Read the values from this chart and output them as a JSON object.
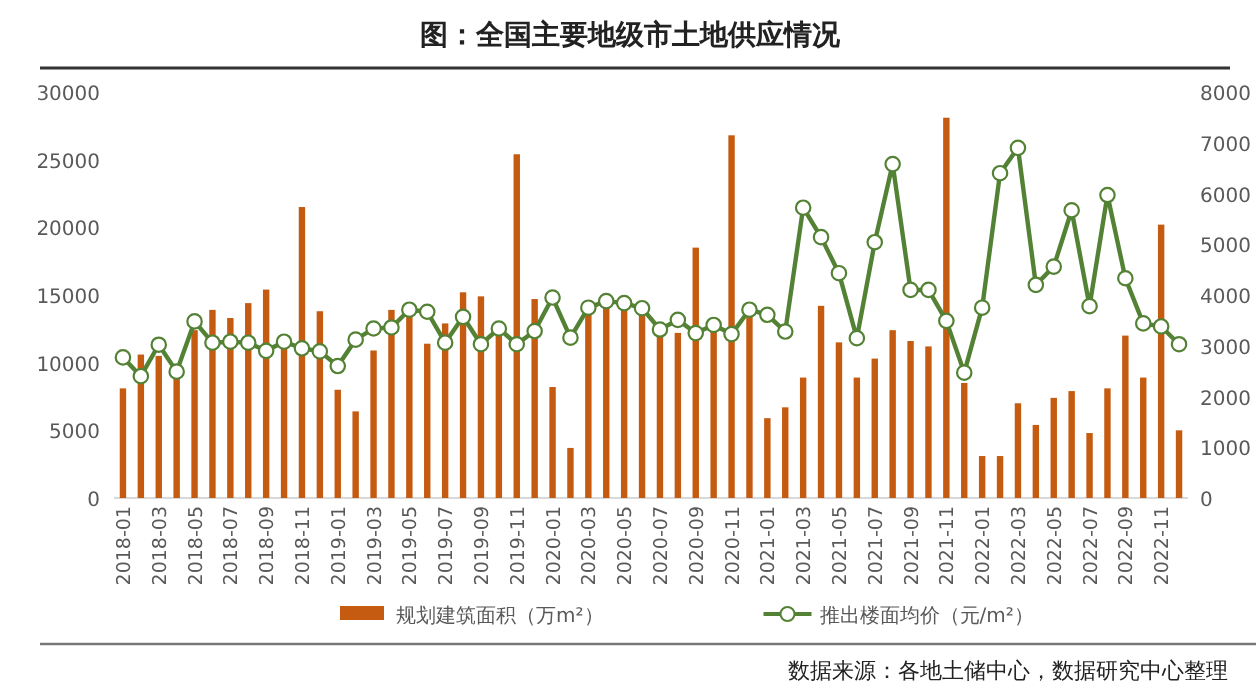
{
  "chart_data": {
    "type": "bar",
    "title": "图：全国主要地级市土地供应情况",
    "categories": [
      "2018-01",
      null,
      "2018-03",
      null,
      "2018-05",
      null,
      "2018-07",
      null,
      "2018-09",
      null,
      "2018-11",
      null,
      "2019-01",
      null,
      "2019-03",
      null,
      "2019-05",
      null,
      "2019-07",
      null,
      "2019-09",
      null,
      "2019-11",
      null,
      "2020-01",
      null,
      "2020-03",
      null,
      "2020-05",
      null,
      "2020-07",
      null,
      "2020-09",
      null,
      "2020-11",
      null,
      "2021-01",
      null,
      "2021-03",
      null,
      "2021-05",
      null,
      "2021-07",
      null,
      "2021-09",
      null,
      "2021-11",
      null,
      "2022-01",
      null,
      "2022-03",
      null,
      "2022-05",
      null,
      "2022-07",
      null,
      "2022-09",
      null,
      "2022-11",
      null
    ],
    "series": [
      {
        "name": "规划建筑面积（万m²）",
        "color": "#c55a11",
        "values": [
          8100,
          10600,
          10500,
          9500,
          12400,
          13900,
          13300,
          14400,
          15400,
          11200,
          21500,
          13800,
          8000,
          6400,
          10900,
          13900,
          13900,
          11400,
          12900,
          15200,
          14900,
          12400,
          25400,
          14700,
          8200,
          3700,
          13900,
          14300,
          13900,
          13700,
          12200,
          12200,
          18500,
          12400,
          26800,
          13400,
          5900,
          6700,
          8900,
          14200,
          11500,
          8900,
          10300,
          12400,
          11600,
          11200,
          28100,
          8500,
          3100,
          3100,
          7000,
          5400,
          7400,
          7900,
          4800,
          8100,
          12000,
          8900,
          20200,
          5000
        ]
      },
      {
        "name": "推出楼面均价（元/m²）",
        "type": "line",
        "axis": "y2",
        "marker": "circle",
        "color": "#548235",
        "values": [
          2770,
          2400,
          3020,
          2490,
          3480,
          3060,
          3080,
          3060,
          2900,
          3080,
          2950,
          2890,
          2600,
          3120,
          3340,
          3360,
          3710,
          3670,
          3060,
          3570,
          3030,
          3340,
          3030,
          3290,
          3950,
          3160,
          3750,
          3880,
          3840,
          3740,
          3320,
          3510,
          3250,
          3410,
          3230,
          3710,
          3610,
          3280,
          5720,
          5140,
          4430,
          3150,
          5040,
          6580,
          4100,
          4100,
          3490,
          2470,
          3750,
          6400,
          6900,
          4200,
          4560,
          5670,
          3780,
          5970,
          4330,
          3440,
          3380,
          3030
        ]
      }
    ],
    "ylim": [
      0,
      30000
    ],
    "yticks": [
      0,
      5000,
      10000,
      15000,
      20000,
      25000,
      30000
    ],
    "y2lim": [
      0,
      8000
    ],
    "y2ticks": [
      0,
      1000,
      2000,
      3000,
      4000,
      5000,
      6000,
      7000,
      8000
    ],
    "legend": "bottom",
    "annotations": [
      "数据来源：各地土储中心，数据研究中心整理"
    ]
  }
}
